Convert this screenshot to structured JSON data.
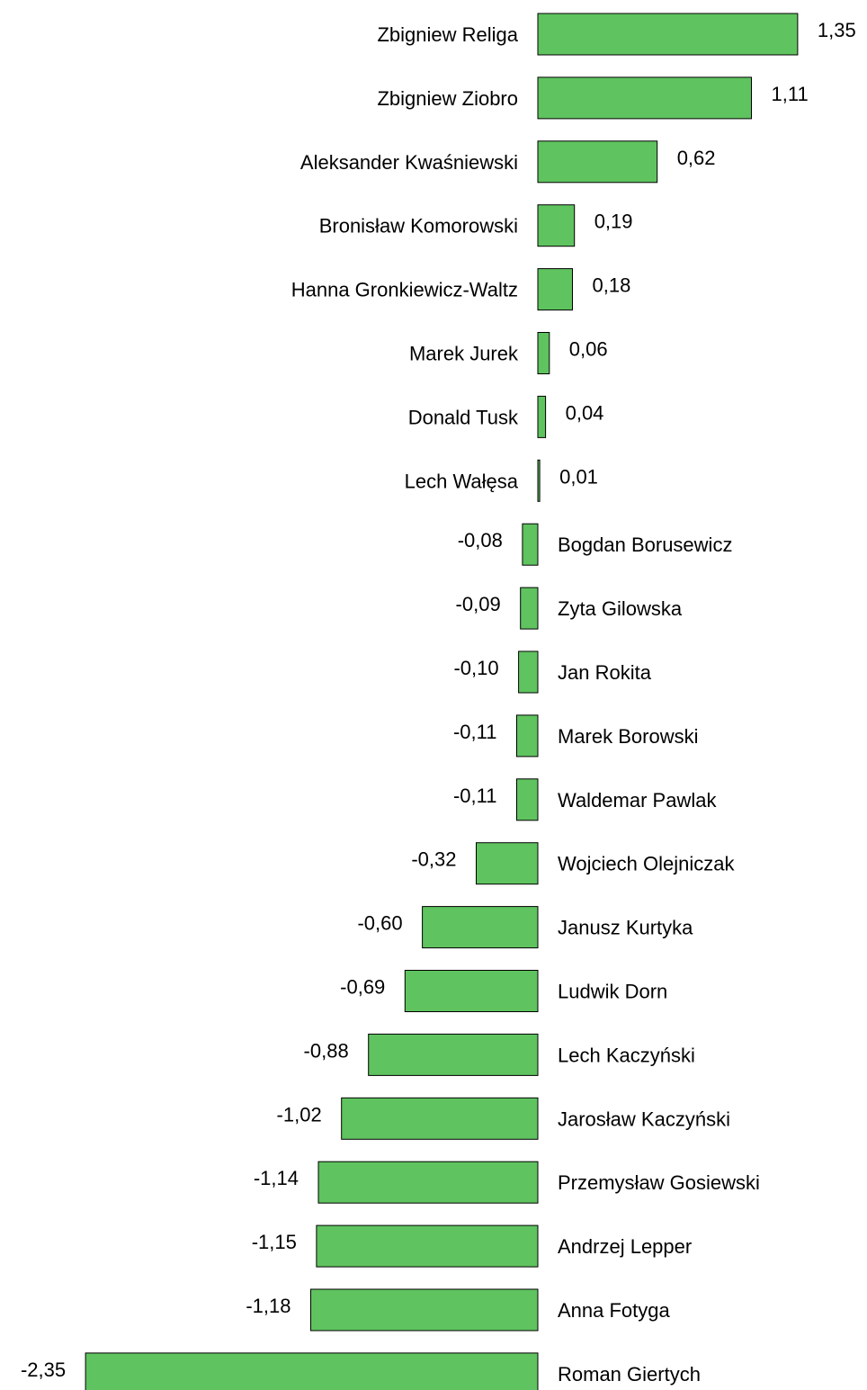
{
  "chart_data": {
    "type": "bar",
    "orientation": "horizontal",
    "title": "",
    "xlabel": "",
    "ylabel": "",
    "grid": false,
    "legend": "none",
    "bar_color": "#5fc35f",
    "categories": [
      "Zbigniew Religa",
      "Zbigniew Ziobro",
      "Aleksander Kwaśniewski",
      "Bronisław Komorowski",
      "Hanna Gronkiewicz-Waltz",
      "Marek Jurek",
      "Donald Tusk",
      "Lech Wałęsa",
      "Bogdan Borusewicz",
      "Zyta Gilowska",
      "Jan Rokita",
      "Marek Borowski",
      "Waldemar Pawlak",
      "Wojciech Olejniczak",
      "Janusz Kurtyka",
      "Ludwik Dorn",
      "Lech Kaczyński",
      "Jarosław Kaczyński",
      "Przemysław Gosiewski",
      "Andrzej Lepper",
      "Anna Fotyga",
      "Roman Giertych"
    ],
    "values": [
      1.35,
      1.11,
      0.62,
      0.19,
      0.18,
      0.06,
      0.04,
      0.01,
      -0.08,
      -0.09,
      -0.1,
      -0.11,
      -0.11,
      -0.32,
      -0.6,
      -0.69,
      -0.88,
      -1.02,
      -1.14,
      -1.15,
      -1.18,
      -2.35
    ],
    "value_labels": [
      "1,35",
      "1,11",
      "0,62",
      "0,19",
      "0,18",
      "0,06",
      "0,04",
      "0,01",
      "-0,08",
      "-0,09",
      "-0,10",
      "-0,11",
      "-0,11",
      "-0,32",
      "-0,60",
      "-0,69",
      "-0,88",
      "-1,02",
      "-1,14",
      "-1,15",
      "-1,18",
      "-2,35"
    ]
  }
}
